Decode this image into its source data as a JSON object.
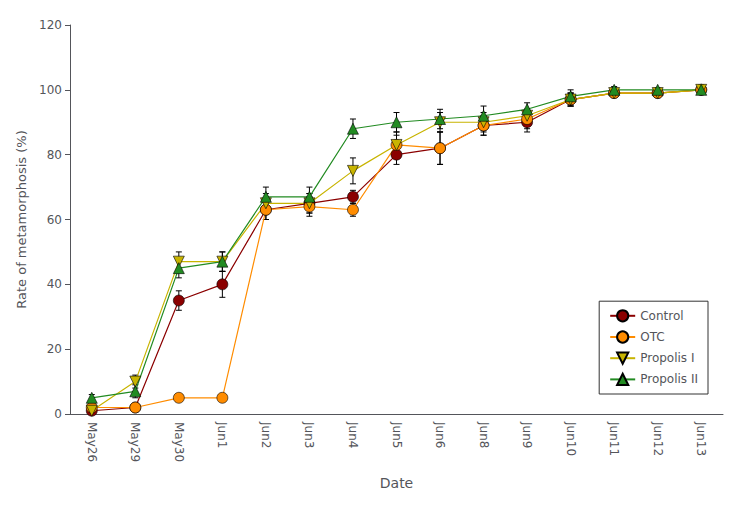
{
  "chart_data": {
    "type": "line",
    "xlabel": "Date",
    "ylabel": "Rate of metamorphosis (%)",
    "categories": [
      "May26",
      "May29",
      "May30",
      "Jun1",
      "Jun2",
      "Jun3",
      "Jun4",
      "Jun5",
      "Jun6",
      "Jun8",
      "Jun9",
      "Jun10",
      "Jun11",
      "Jun12",
      "Jun13"
    ],
    "series": [
      {
        "name": "Control",
        "color": "#8B0000",
        "marker": "circle",
        "values": [
          1,
          2,
          35,
          40,
          63,
          65,
          67,
          80,
          82,
          89,
          90,
          97,
          99,
          99,
          100
        ],
        "errors": [
          0.5,
          1,
          3,
          4,
          3,
          3,
          2,
          3,
          5,
          3,
          3,
          2,
          1,
          1,
          0.5
        ]
      },
      {
        "name": "OTC",
        "color": "#FF8C00",
        "marker": "circle",
        "values": [
          2,
          2,
          5,
          5,
          63,
          64,
          63,
          83,
          82,
          89,
          91,
          97,
          99,
          99,
          100
        ],
        "errors": [
          0.5,
          1,
          1,
          1,
          3,
          3,
          2,
          4,
          5,
          3,
          3,
          2,
          1,
          1,
          0.5
        ]
      },
      {
        "name": "Propolis I",
        "color": "#C8B400",
        "marker": "triangle_down",
        "values": [
          1,
          10,
          47,
          47,
          65,
          65,
          75,
          83,
          90,
          90,
          92,
          97,
          99,
          99,
          100
        ],
        "errors": [
          0.5,
          2,
          3,
          3,
          3,
          3,
          4,
          3,
          3,
          3,
          2,
          2,
          1,
          1,
          0.5
        ]
      },
      {
        "name": "Propolis II",
        "color": "#228B22",
        "marker": "triangle_up",
        "values": [
          5,
          7,
          45,
          47,
          67,
          67,
          88,
          90,
          91,
          92,
          94,
          98,
          100,
          100,
          100
        ],
        "errors": [
          1,
          2,
          3,
          3,
          3,
          3,
          3,
          3,
          3,
          3,
          2,
          2,
          1,
          0.5,
          0.5
        ]
      }
    ],
    "ylim": [
      0,
      120
    ],
    "yticks": [
      0,
      20,
      40,
      60,
      80,
      100,
      120
    ],
    "grid": false,
    "legend": "lower right"
  }
}
